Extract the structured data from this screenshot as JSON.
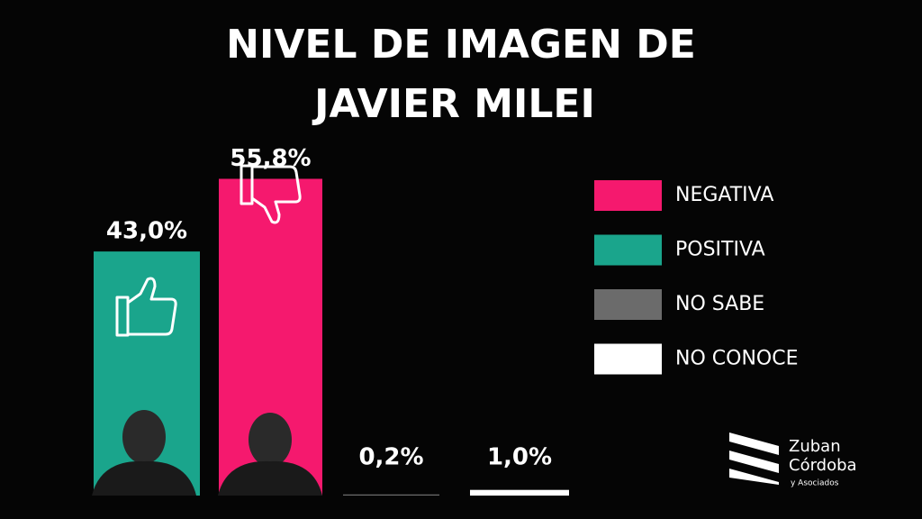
{
  "chart_data": {
    "type": "bar",
    "title": [
      "NIVEL DE IMAGEN DE",
      "JAVIER MILEI"
    ],
    "series": [
      {
        "name": "NEGATIVA",
        "color": "#f5196e",
        "values": [
          55.8
        ],
        "value_labels": [
          "55,8%"
        ]
      },
      {
        "name": "POSITIVA",
        "color": "#1aa58c",
        "values": [
          43.0
        ],
        "value_labels": [
          "43,0%"
        ]
      },
      {
        "name": "NO SABE",
        "color": "#6b6b6b",
        "values": [
          0.2
        ],
        "value_labels": [
          "0,2%"
        ]
      },
      {
        "name": "NO CONOCE",
        "color": "#ffffff",
        "values": [
          1.0
        ],
        "value_labels": [
          "1,0%"
        ]
      }
    ],
    "legend": "right"
  },
  "logo": {
    "name": [
      "Zuban",
      "Córdoba"
    ],
    "subtitle": "y Asociados"
  }
}
